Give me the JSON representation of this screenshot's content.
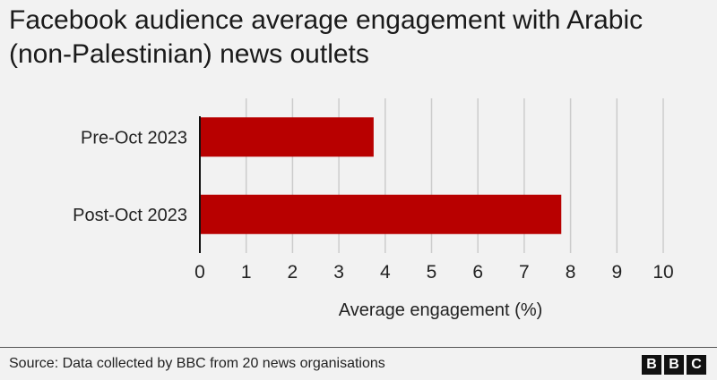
{
  "title": "Facebook audience average engagement with Arabic (non-Palestinian) news outlets",
  "source": "Source: Data collected by BBC from 20 news organisations",
  "logo_letters": [
    "B",
    "B",
    "C"
  ],
  "colors": {
    "bar": "#b80000",
    "grid": "#cccccc",
    "axis": "#111111",
    "background": "#f2f2f2"
  },
  "chart_data": {
    "type": "bar",
    "orientation": "horizontal",
    "categories": [
      "Pre-Oct 2023",
      "Post-Oct 2023"
    ],
    "values": [
      3.75,
      7.8
    ],
    "xlabel": "Average engagement (%)",
    "ylabel": "",
    "xlim": [
      0,
      10
    ],
    "xticks": [
      0,
      1,
      2,
      3,
      4,
      5,
      6,
      7,
      8,
      9,
      10
    ],
    "grid": true
  }
}
